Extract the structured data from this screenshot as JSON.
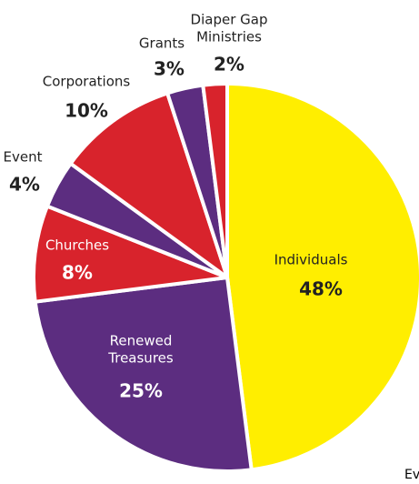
{
  "chart_data": {
    "type": "pie",
    "categories": [
      "Individuals",
      "Renewed Treasures",
      "Churches",
      "Event",
      "Corporations",
      "Grants",
      "Diaper Gap Ministries"
    ],
    "values": [
      48,
      25,
      8,
      4,
      10,
      3,
      2
    ],
    "value_labels": [
      "48%",
      "25%",
      "8%",
      "4%",
      "10%",
      "3%",
      "2%"
    ],
    "colors": [
      "#ffee00",
      "#5c2d80",
      "#d8232c",
      "#5c2d80",
      "#d8232c",
      "#5c2d80",
      "#d8232c"
    ]
  },
  "clipped_label": "Even"
}
